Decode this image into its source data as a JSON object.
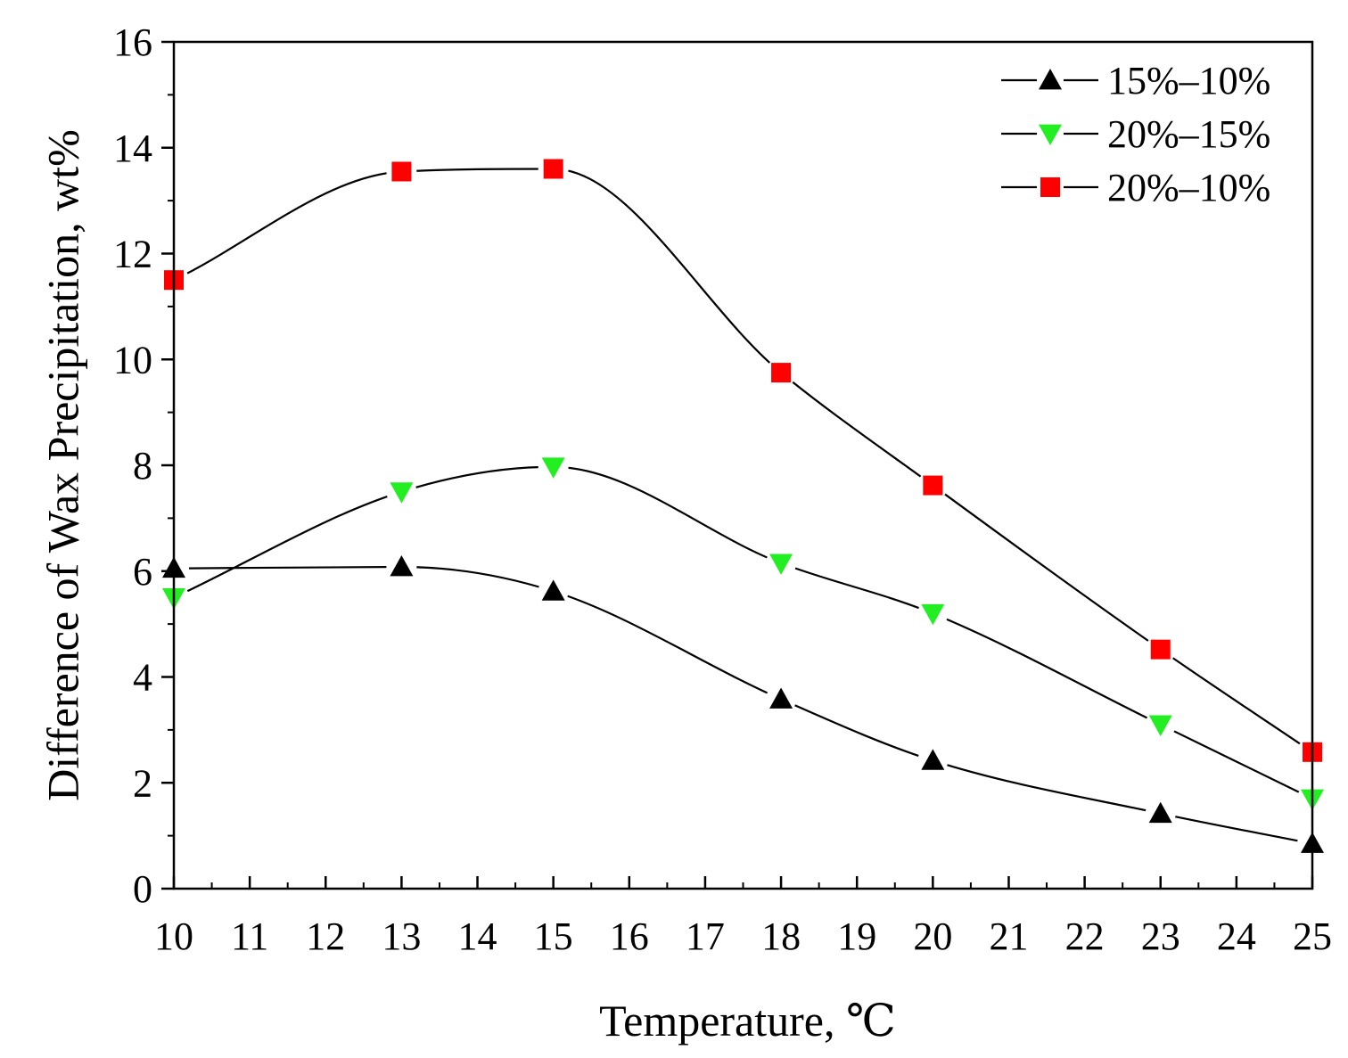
{
  "chart_data": {
    "type": "line",
    "title": "",
    "xlabel": "Temperature, ℃",
    "ylabel": "Difference of Wax Precipitation, wt%",
    "xlim": [
      10,
      25
    ],
    "ylim": [
      0,
      16
    ],
    "xticks": [
      10,
      11,
      12,
      13,
      14,
      15,
      16,
      17,
      18,
      19,
      20,
      21,
      22,
      23,
      24,
      25
    ],
    "yticks": [
      0,
      2,
      4,
      6,
      8,
      10,
      12,
      14,
      16
    ],
    "grid": false,
    "legend_position": "top-right",
    "x": [
      10,
      13,
      15,
      18,
      20,
      23,
      25
    ],
    "series": [
      {
        "name": "15%–10%",
        "marker": "triangle-up",
        "color": "#000000",
        "values": [
          6.05,
          6.08,
          5.62,
          3.58,
          2.42,
          1.42,
          0.85
        ]
      },
      {
        "name": "20%–15%",
        "marker": "triangle-down",
        "color": "#22ee22",
        "values": [
          5.5,
          7.5,
          7.97,
          6.15,
          5.2,
          3.1,
          1.7
        ]
      },
      {
        "name": "20%–10%",
        "marker": "square",
        "color": "#ff0000",
        "values": [
          11.5,
          13.55,
          13.6,
          9.75,
          7.62,
          4.52,
          2.58
        ]
      }
    ]
  }
}
